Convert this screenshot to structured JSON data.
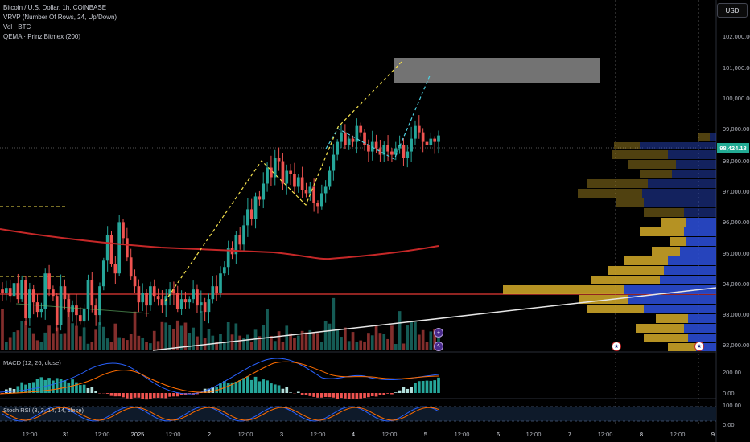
{
  "header": {
    "symbol_line": "Bitcoin / U.S. Dollar, 1h, COINBASE",
    "indicators": [
      "VRVP (Number Of Rows, 24, Up/Down)",
      "Vol · BTC",
      "QEMA · Prinz Bitmex (200)"
    ]
  },
  "currency_button": "USD",
  "last_price": "98,424.18",
  "price_axis": [
    "102,000.00",
    "101,000.00",
    "100,000.00",
    "99,000.00",
    "98,000.00",
    "97,000.00",
    "96,000.00",
    "95,000.00",
    "94,000.00",
    "93,000.00",
    "92,000.00"
  ],
  "macd": {
    "label": "MACD (12, 26, close)",
    "ticks": [
      "200.00",
      "0.00"
    ]
  },
  "stoch": {
    "label": "Stoch RSI (3, 3, 14, 14, close)",
    "ticks": [
      "100.00",
      "0.00"
    ]
  },
  "time_axis": [
    "12:00",
    "31",
    "12:00",
    "2025",
    "12:00",
    "2",
    "12:00",
    "3",
    "12:00",
    "4",
    "12:00",
    "5",
    "12:00",
    "6",
    "12:00",
    "7",
    "12:00",
    "8",
    "12:00",
    "9"
  ],
  "event_icons": [
    "bolt-event-icon",
    "bolt-event-icon",
    "us-flag-event-icon",
    "us-flag-event-icon"
  ],
  "colors": {
    "up": "#26a69a",
    "down": "#ef5350",
    "ema": "#c62828",
    "vp_up": "#c9a227",
    "vp_down": "#2a4bd0"
  },
  "chart_data": {
    "type": "candlestick",
    "price_range": [
      91700,
      102500
    ],
    "closes": [
      93500,
      93650,
      93400,
      93800,
      93300,
      93900,
      92700,
      93600,
      93200,
      92900,
      93000,
      94100,
      93600,
      93400,
      92500,
      93700,
      93300,
      92900,
      93100,
      92800,
      92600,
      93000,
      93900,
      93100,
      92800,
      93700,
      94500,
      95300,
      94400,
      94100,
      95700,
      95200,
      94600,
      94000,
      93700,
      93200,
      93500,
      93100,
      93700,
      93400,
      93300,
      93100,
      93400,
      93600,
      93500,
      93000,
      93300,
      93200,
      93300,
      93600,
      93100,
      93200,
      92900,
      93300,
      93700,
      93500,
      94100,
      94300,
      94900,
      94700,
      95300,
      95000,
      95600,
      96100,
      95800,
      96500,
      96400,
      96900,
      97400,
      97100,
      97700,
      97600,
      96900,
      97300,
      97200,
      96800,
      97100,
      96700,
      96600,
      96800,
      96300,
      96200,
      96600,
      96800,
      97300,
      97800,
      98200,
      98500,
      98100,
      98300,
      98200,
      98700,
      98500,
      98100,
      97900,
      98200,
      98000,
      97800,
      98100,
      97900,
      97800,
      98000,
      98100,
      97700,
      97900,
      98300,
      98700,
      98500,
      98200,
      98100,
      98300,
      98200,
      98400
    ],
    "volume_profile": {
      "rows": [
        "99,000",
        "98,000",
        "97,000",
        "96,000",
        "95,000",
        "94,000",
        "93,000",
        "92,000"
      ]
    }
  }
}
